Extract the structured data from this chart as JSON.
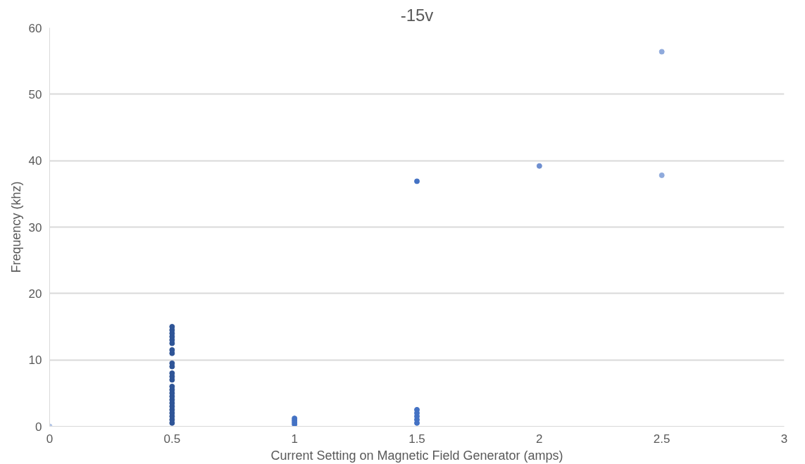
{
  "chart_data": {
    "type": "scatter",
    "title": "-15v",
    "xlabel": "Current Setting on Magnetic Field Generator (amps)",
    "ylabel": "Frequency (khz)",
    "xlim": [
      0,
      3
    ],
    "xticks": [
      0,
      0.5,
      1,
      1.5,
      2,
      2.5,
      3
    ],
    "ylim": [
      0,
      60
    ],
    "yticks": [
      0,
      10,
      20,
      30,
      40,
      50,
      60
    ],
    "grid": "y",
    "marker": "circle",
    "series": [
      {
        "color": "#b4c7e7",
        "x": [
          0
        ],
        "values": [
          0
        ]
      },
      {
        "color": "#2f5597",
        "x": [
          0.5,
          0.5,
          0.5,
          0.5,
          0.5,
          0.5,
          0.5,
          0.5,
          0.5,
          0.5,
          0.5,
          0.5,
          0.5,
          0.5,
          0.5,
          0.5,
          0.5,
          0.5,
          0.5,
          0.5,
          0.5,
          0.5,
          0.5,
          0.5,
          0.5
        ],
        "values": [
          0.5,
          1,
          1.5,
          2,
          2.5,
          3,
          3.5,
          4,
          4.5,
          5,
          5.5,
          6,
          7,
          7.5,
          8,
          9,
          9.5,
          11,
          11.5,
          12.5,
          13,
          13.5,
          14,
          14.5,
          15
        ]
      },
      {
        "color": "#4472c4",
        "x": [
          1,
          1,
          1,
          1,
          1.5,
          1.5,
          1.5,
          1.5,
          1.5,
          1.5
        ],
        "values": [
          0.3,
          0.6,
          0.9,
          1.2,
          0.5,
          1,
          1.5,
          2,
          2.5,
          36.9
        ]
      },
      {
        "color": "#6f8fd0",
        "x": [
          2
        ],
        "values": [
          39.2
        ]
      },
      {
        "color": "#8faadc",
        "x": [
          2.5,
          2.5
        ],
        "values": [
          37.8,
          56.4
        ]
      }
    ]
  }
}
